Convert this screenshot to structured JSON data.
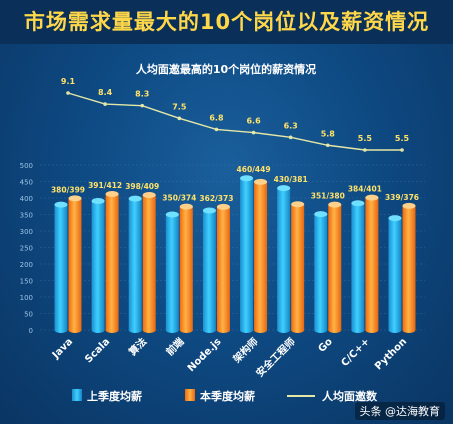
{
  "title": "市场需求量最大的10个岗位以及薪资情况",
  "watermark": "头条 @达海教育",
  "chart_data": {
    "type": "bar",
    "subtitle": "人均面邀最高的10个岗位的薪资情况",
    "categories": [
      "Java",
      "Scala",
      "算法",
      "前端",
      "Node.js",
      "架构师",
      "安全工程师",
      "Go",
      "C/C++",
      "Python"
    ],
    "series": [
      {
        "name": "上季度均薪",
        "values": [
          380,
          391,
          398,
          350,
          362,
          460,
          430,
          351,
          384,
          339
        ],
        "color": "#26b7f0"
      },
      {
        "name": "本季度均薪",
        "values": [
          399,
          412,
          409,
          374,
          373,
          449,
          381,
          380,
          401,
          376
        ],
        "color": "#ff8a1c"
      }
    ],
    "bar_labels": [
      "380/399",
      "391/412",
      "398/409",
      "350/374",
      "362/373",
      "460/449",
      "430/381",
      "351/380",
      "384/401",
      "339/376"
    ],
    "line": {
      "name": "人均面邀数",
      "values": [
        9.1,
        8.4,
        8.3,
        7.5,
        6.8,
        6.6,
        6.3,
        5.8,
        5.5,
        5.5
      ],
      "color": "#e4e7a6"
    },
    "ylim": [
      0,
      500
    ],
    "yticks": [
      0,
      50,
      100,
      150,
      200,
      250,
      300,
      350,
      400,
      450,
      500
    ],
    "grid": true,
    "legend_position": "bottom"
  }
}
